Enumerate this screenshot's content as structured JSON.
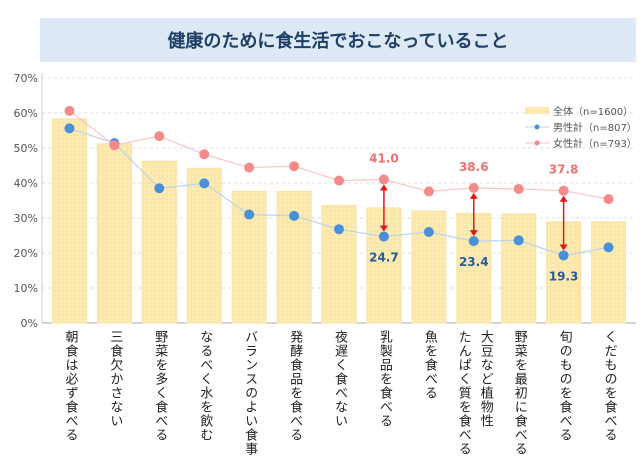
{
  "chart_data": {
    "type": "bar",
    "title": "健康のために食生活でおこなっていること",
    "xlabel": "",
    "ylabel": "",
    "ylim": [
      0,
      70
    ],
    "yticks": [
      "0%",
      "10%",
      "20%",
      "30%",
      "40%",
      "50%",
      "60%",
      "70%"
    ],
    "grid": true,
    "legend_position": "top-right",
    "categories": [
      [
        "朝食は必ず食べる"
      ],
      [
        "三食欠かさない"
      ],
      [
        "野菜を多く食べる"
      ],
      [
        "なるべく水を飲む"
      ],
      [
        "バランスのよい食事"
      ],
      [
        "発酵食品を食べる"
      ],
      [
        "夜遅く食べない"
      ],
      [
        "乳製品を食べる"
      ],
      [
        "魚を食べる"
      ],
      [
        "大豆など植物性",
        "たんぱく質を食べる"
      ],
      [
        "野菜を最初に食べる"
      ],
      [
        "旬のものを食べる"
      ],
      [
        "くだものを食べる"
      ]
    ],
    "series": [
      {
        "name": "全体（n=1600）",
        "kind": "bar",
        "color": "#fbe7a8",
        "values": [
          58.3,
          51.2,
          46.2,
          44.2,
          37.6,
          37.6,
          33.6,
          32.9,
          32.0,
          31.3,
          31.1,
          28.9,
          28.9
        ]
      },
      {
        "name": "男性計（n=807）",
        "kind": "line",
        "color": "#4a90d9",
        "values": [
          55.6,
          51.4,
          38.5,
          39.9,
          31.0,
          30.6,
          26.8,
          24.7,
          26.0,
          23.4,
          23.6,
          19.3,
          21.6
        ]
      },
      {
        "name": "女性計（n=793）",
        "kind": "line",
        "color": "#f58a8a",
        "values": [
          60.6,
          50.8,
          53.4,
          48.2,
          44.4,
          44.8,
          40.7,
          41.0,
          37.6,
          38.6,
          38.3,
          37.8,
          35.4
        ]
      }
    ],
    "annotations": [
      {
        "category_index": 7,
        "female": "41.0",
        "male": "24.7"
      },
      {
        "category_index": 9,
        "female": "38.6",
        "male": "23.4"
      },
      {
        "category_index": 11,
        "female": "37.8",
        "male": "19.3"
      }
    ]
  }
}
